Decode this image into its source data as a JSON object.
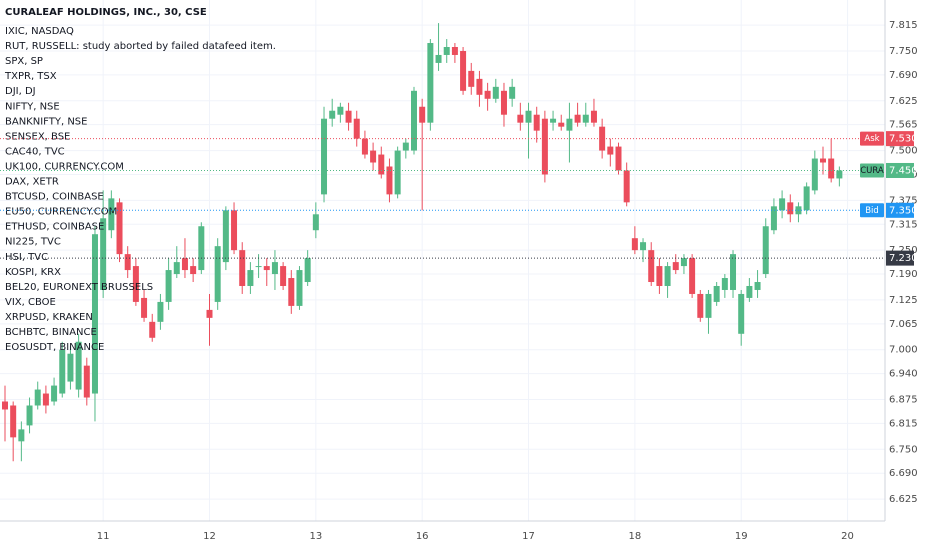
{
  "chart_data": {
    "type": "candlestick",
    "title": "CURALEAF HOLDINGS, INC., 30, CSE",
    "legend_items": [
      "IXIC, NASDAQ",
      "RUT, RUSSELL: study aborted by failed datafeed item.",
      "SPX, SP",
      "TXPR, TSX",
      "DJI, DJ",
      "NIFTY, NSE",
      "BANKNIFTY, NSE",
      "SENSEX, BSE",
      "CAC40, TVC",
      "UK100, CURRENCY.COM",
      "DAX, XETR",
      "BTCUSD, COINBASE",
      "EU50, CURRENCY.COM",
      "ETHUSD, COINBASE",
      "NI225, TVC",
      "HSI, TVC",
      "KOSPI, KRX",
      "BEL20, EURONEXT BRUSSELS",
      "VIX, CBOE",
      "XRPUSD, KRAKEN",
      "BCHBTC, BINANCE",
      "EOSUSDT, BINANCE"
    ],
    "up_color": "#53b987",
    "down_color": "#eb4d5c",
    "grid": true,
    "categories": [
      null,
      null,
      null,
      null,
      null,
      null,
      null,
      null,
      null,
      null,
      null,
      null,
      "11",
      null,
      null,
      null,
      null,
      null,
      null,
      null,
      null,
      null,
      null,
      null,
      null,
      "12",
      null,
      null,
      null,
      null,
      null,
      null,
      null,
      null,
      null,
      null,
      null,
      null,
      "13",
      null,
      null,
      null,
      null,
      null,
      null,
      null,
      null,
      null,
      null,
      null,
      null,
      "16",
      null,
      null,
      null,
      null,
      null,
      null,
      null,
      null,
      null,
      null,
      null,
      null,
      "17",
      null,
      null,
      null,
      null,
      null,
      null,
      null,
      null,
      null,
      null,
      null,
      null,
      "18",
      null,
      null,
      null,
      null,
      null,
      null,
      null,
      null,
      null,
      null,
      null,
      null,
      "19",
      null,
      null,
      null,
      null,
      null,
      null,
      null,
      null,
      null,
      null,
      null,
      null,
      "20"
    ],
    "open": [
      6.87,
      6.86,
      6.77,
      6.81,
      6.86,
      6.89,
      6.87,
      6.89,
      6.92,
      6.9,
      6.96,
      6.89,
      7.15,
      7.3,
      7.37,
      7.24,
      7.21,
      7.13,
      7.07,
      7.07,
      7.12,
      7.19,
      7.23,
      7.21,
      7.2,
      7.1,
      7.12,
      7.22,
      7.35,
      7.25,
      7.16,
      7.21,
      7.21,
      7.19,
      7.21,
      7.18,
      7.11,
      7.17,
      7.3,
      7.39,
      7.58,
      7.59,
      7.6,
      7.58,
      7.53,
      7.5,
      7.49,
      7.46,
      7.39,
      7.5,
      7.5,
      7.61,
      7.57,
      7.72,
      7.74,
      7.76,
      7.75,
      7.7,
      7.68,
      7.65,
      7.63,
      7.65,
      7.63,
      7.59,
      7.57,
      7.59,
      7.58,
      7.57,
      7.57,
      7.55,
      7.59,
      7.57,
      7.6,
      7.56,
      7.51,
      7.51,
      7.45,
      7.28,
      7.25,
      7.25,
      7.21,
      7.16,
      7.22,
      7.21,
      7.23,
      7.14,
      7.08,
      7.12,
      7.15,
      7.15,
      7.04,
      7.13,
      7.15,
      7.19,
      7.3,
      7.35,
      7.37,
      7.34,
      7.35,
      7.4,
      7.48,
      7.48,
      7.43,
      null
    ],
    "high": [
      6.91,
      6.87,
      6.82,
      6.88,
      6.92,
      6.91,
      6.93,
      7.02,
      7.01,
      7.04,
      6.98,
      7.31,
      7.4,
      7.4,
      7.38,
      7.26,
      7.23,
      7.15,
      7.09,
      7.14,
      7.23,
      7.26,
      7.28,
      7.23,
      7.32,
      7.14,
      7.28,
      7.36,
      7.37,
      7.27,
      7.22,
      7.24,
      7.23,
      7.25,
      7.22,
      7.2,
      7.21,
      7.25,
      7.37,
      7.61,
      7.63,
      7.62,
      7.62,
      7.6,
      7.55,
      7.52,
      7.51,
      7.48,
      7.51,
      7.53,
      7.66,
      7.63,
      7.78,
      7.82,
      7.78,
      7.77,
      7.76,
      7.72,
      7.7,
      7.67,
      7.68,
      7.67,
      7.68,
      7.62,
      7.62,
      7.61,
      7.6,
      7.6,
      7.59,
      7.62,
      7.62,
      7.62,
      7.63,
      7.58,
      7.53,
      7.52,
      7.47,
      7.31,
      7.28,
      7.27,
      7.23,
      7.22,
      7.24,
      7.24,
      7.24,
      7.15,
      7.15,
      7.17,
      7.19,
      7.25,
      7.15,
      7.18,
      7.2,
      7.33,
      7.38,
      7.4,
      7.39,
      7.37,
      7.42,
      7.5,
      7.51,
      7.53,
      7.46,
      null
    ],
    "low": [
      6.77,
      6.72,
      6.72,
      6.79,
      6.85,
      6.84,
      6.86,
      6.88,
      6.9,
      6.88,
      6.86,
      6.82,
      7.13,
      7.28,
      7.22,
      7.18,
      7.11,
      7.07,
      7.02,
      7.05,
      7.1,
      7.18,
      7.18,
      7.17,
      7.19,
      7.01,
      7.1,
      7.2,
      7.24,
      7.14,
      7.14,
      7.18,
      7.16,
      7.15,
      7.15,
      7.09,
      7.1,
      7.16,
      7.28,
      7.37,
      7.56,
      7.57,
      7.55,
      7.51,
      7.48,
      7.45,
      7.43,
      7.37,
      7.38,
      7.48,
      7.49,
      7.35,
      7.55,
      7.7,
      7.72,
      7.72,
      7.64,
      7.64,
      7.61,
      7.6,
      7.62,
      7.56,
      7.61,
      7.55,
      7.48,
      7.52,
      7.42,
      7.55,
      7.55,
      7.47,
      7.56,
      7.56,
      7.56,
      7.48,
      7.46,
      7.44,
      7.36,
      7.24,
      7.22,
      7.16,
      7.14,
      7.13,
      7.19,
      7.19,
      7.13,
      7.07,
      7.04,
      7.11,
      7.13,
      7.13,
      7.01,
      7.12,
      7.13,
      7.18,
      7.29,
      7.33,
      7.32,
      7.32,
      7.34,
      7.39,
      7.44,
      7.42,
      7.41,
      null
    ],
    "close": [
      6.85,
      6.78,
      6.8,
      6.86,
      6.9,
      6.86,
      6.91,
      7.0,
      6.99,
      7.02,
      6.88,
      7.29,
      7.33,
      7.38,
      7.24,
      7.2,
      7.12,
      7.08,
      7.03,
      7.12,
      7.2,
      7.22,
      7.2,
      7.19,
      7.31,
      7.08,
      7.26,
      7.35,
      7.25,
      7.16,
      7.2,
      7.21,
      7.2,
      7.22,
      7.16,
      7.11,
      7.2,
      7.23,
      7.34,
      7.58,
      7.6,
      7.61,
      7.57,
      7.53,
      7.49,
      7.47,
      7.44,
      7.39,
      7.5,
      7.52,
      7.65,
      7.57,
      7.77,
      7.74,
      7.76,
      7.74,
      7.65,
      7.66,
      7.64,
      7.63,
      7.66,
      7.59,
      7.66,
      7.57,
      7.6,
      7.55,
      7.44,
      7.58,
      7.56,
      7.58,
      7.57,
      7.59,
      7.57,
      7.5,
      7.49,
      7.45,
      7.37,
      7.25,
      7.27,
      7.17,
      7.16,
      7.21,
      7.2,
      7.23,
      7.14,
      7.08,
      7.14,
      7.16,
      7.18,
      7.24,
      7.14,
      7.16,
      7.17,
      7.31,
      7.36,
      7.38,
      7.34,
      7.36,
      7.41,
      7.48,
      7.47,
      7.43,
      7.45,
      null
    ],
    "ylim": [
      6.57,
      7.878
    ],
    "yticks": [
      {
        "value": 7.815,
        "label": "7.815"
      },
      {
        "value": 7.75,
        "label": "7.750"
      },
      {
        "value": 7.69,
        "label": "7.690"
      },
      {
        "value": 7.625,
        "label": "7.625"
      },
      {
        "value": 7.565,
        "label": "7.565"
      },
      {
        "value": 7.5,
        "label": "7.500"
      },
      {
        "value": 7.44,
        "label": "7.440"
      },
      {
        "value": 7.375,
        "label": "7.375"
      },
      {
        "value": 7.315,
        "label": "7.315"
      },
      {
        "value": 7.25,
        "label": "7.250"
      },
      {
        "value": 7.19,
        "label": "7.190"
      },
      {
        "value": 7.125,
        "label": "7.125"
      },
      {
        "value": 7.065,
        "label": "7.065"
      },
      {
        "value": 7.0,
        "label": "7.000"
      },
      {
        "value": 6.94,
        "label": "6.940"
      },
      {
        "value": 6.875,
        "label": "6.875"
      },
      {
        "value": 6.815,
        "label": "6.815"
      },
      {
        "value": 6.75,
        "label": "6.750"
      },
      {
        "value": 6.69,
        "label": "6.690"
      },
      {
        "value": 6.625,
        "label": "6.625"
      }
    ],
    "price_lines": [
      {
        "name": "Ask",
        "value": 7.53,
        "label": "7.530",
        "color": "#eb4d5c"
      },
      {
        "name": "CURA",
        "value": 7.45,
        "label": "7.450",
        "color": "#53b987"
      },
      {
        "name": "Bid",
        "value": 7.35,
        "label": "7.350",
        "color": "#2196f3"
      },
      {
        "value": 7.23,
        "label": "7.230",
        "color": "#363a45"
      }
    ]
  }
}
